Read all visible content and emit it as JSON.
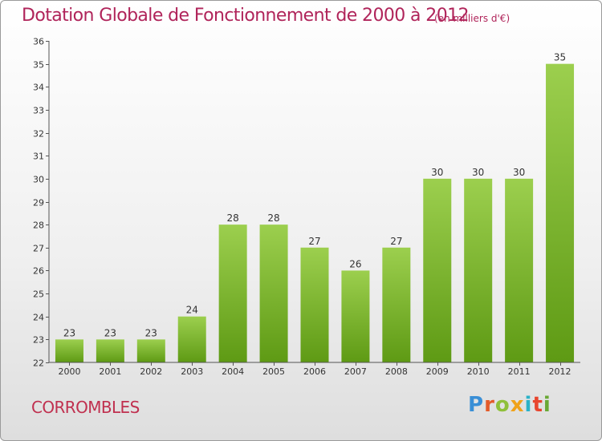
{
  "header": {
    "title": "Dotation Globale de Fonctionnement de 2000 à 2012",
    "unit": "(en milliers d'€)"
  },
  "footer": {
    "commune": "CORROMBLES",
    "brand": [
      "P",
      "r",
      "o",
      "x",
      "i",
      "t",
      "i"
    ]
  },
  "colors": {
    "bar_light": "#9ccf4e",
    "bar_dark": "#5e9a14",
    "title": "#b0245a",
    "commune": "#c0304f"
  },
  "chart_data": {
    "type": "bar",
    "title": "Dotation Globale de Fonctionnement de 2000 à 2012",
    "xlabel": "",
    "ylabel": "",
    "categories": [
      "2000",
      "2001",
      "2002",
      "2003",
      "2004",
      "2005",
      "2006",
      "2007",
      "2008",
      "2009",
      "2010",
      "2011",
      "2012"
    ],
    "values": [
      23,
      23,
      23,
      24,
      28,
      28,
      27,
      26,
      27,
      30,
      30,
      30,
      35
    ],
    "ylim": [
      22,
      36
    ],
    "yticks": [
      22,
      23,
      24,
      25,
      26,
      27,
      28,
      29,
      30,
      31,
      32,
      33,
      34,
      35,
      36
    ],
    "grid": false,
    "data_labels": true
  }
}
